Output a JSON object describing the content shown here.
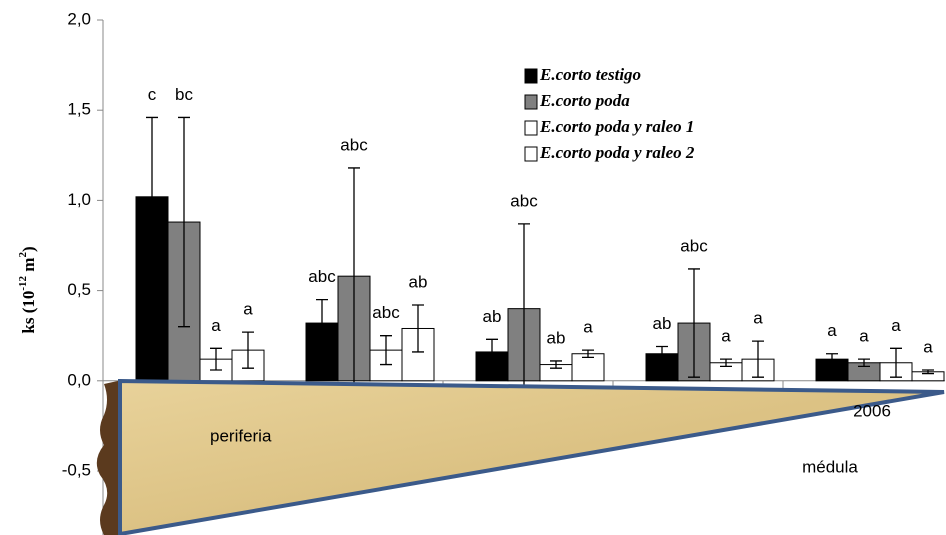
{
  "chart_data": {
    "type": "bar",
    "y_label": [
      "ks (10",
      "-12",
      " m",
      "2",
      ")"
    ],
    "annotations": [
      "periferia",
      "médula",
      "2006"
    ],
    "categories": [
      null,
      null,
      null,
      null,
      null
    ],
    "ylim": [
      -0.5,
      2.0
    ],
    "yticks": [
      {
        "value": -0.5,
        "label": "-0,5"
      },
      {
        "value": 0,
        "label": "0,0"
      },
      {
        "value": 0.5,
        "label": "0,5"
      },
      {
        "value": 1.0,
        "label": "1,0"
      },
      {
        "value": 1.5,
        "label": "1,5"
      },
      {
        "value": 2.0,
        "label": "2,0"
      }
    ],
    "legend": "top-right",
    "series": [
      {
        "name": "E.corto testigo",
        "color": "#000000",
        "values": [
          1.02,
          0.32,
          0.16,
          0.15,
          0.12
        ],
        "errors": [
          0.44,
          0.13,
          0.07,
          0.04,
          0.03
        ],
        "letters": [
          "c",
          "abc",
          "ab",
          "ab",
          "a"
        ]
      },
      {
        "name": "E.corto poda",
        "color": "#808080",
        "values": [
          0.88,
          0.58,
          0.4,
          0.32,
          0.1
        ],
        "errors": [
          0.58,
          0.6,
          0.47,
          0.3,
          0.02
        ],
        "letters": [
          "bc",
          "abc",
          "abc",
          "abc",
          "a"
        ]
      },
      {
        "name": "E.corto poda y raleo 1",
        "color": "#ffffff",
        "values": [
          0.12,
          0.17,
          0.09,
          0.1,
          0.1
        ],
        "errors": [
          0.06,
          0.08,
          0.02,
          0.02,
          0.08
        ],
        "letters": [
          "a",
          "abc",
          "ab",
          "a",
          "a"
        ]
      },
      {
        "name": "E.corto poda y raleo 2",
        "color": "#ffffff",
        "values": [
          0.17,
          0.29,
          0.15,
          0.12,
          0.05
        ],
        "errors": [
          0.1,
          0.13,
          0.02,
          0.1,
          0.01
        ],
        "letters": [
          "a",
          "ab",
          "a",
          "a",
          "a"
        ]
      }
    ]
  }
}
